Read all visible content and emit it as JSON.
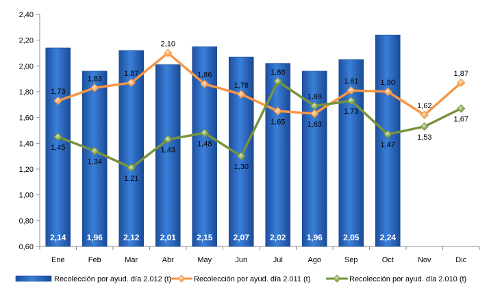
{
  "chart_data": {
    "type": "bar",
    "categories": [
      "Ene",
      "Feb",
      "Mar",
      "Abr",
      "May",
      "Jun",
      "Jul",
      "Ago",
      "Sep",
      "Oct",
      "Nov",
      "Dic"
    ],
    "ylim": [
      0.6,
      2.4
    ],
    "yticks": [
      "0,60",
      "0,80",
      "1,00",
      "1,20",
      "1,40",
      "1,60",
      "1,80",
      "2,00",
      "2,20",
      "2,40"
    ],
    "grid": false,
    "legend_position": "bottom",
    "series": [
      {
        "name": "Recolección por ayud. día 2.012 (t)",
        "kind": "bar",
        "color": "#2e6fce",
        "values": [
          2.14,
          1.96,
          2.12,
          2.01,
          2.15,
          2.07,
          2.02,
          1.96,
          2.05,
          2.24,
          null,
          null
        ],
        "labels": [
          "2,14",
          "1,96",
          "2,12",
          "2,01",
          "2,15",
          "2,07",
          "2,02",
          "1,96",
          "2,05",
          "2,24",
          "",
          ""
        ]
      },
      {
        "name": "Recolección por ayud. día 2.011 (t)",
        "kind": "line",
        "color": "#f79646",
        "values": [
          1.73,
          1.83,
          1.87,
          2.1,
          1.86,
          1.78,
          1.65,
          1.63,
          1.81,
          1.8,
          1.62,
          1.87
        ],
        "labels": [
          "1,73",
          "1,83",
          "1,87",
          "2,10",
          "1,86",
          "1,78",
          "1,65",
          "1,63",
          "1,81",
          "1,80",
          "1,62",
          "1,87"
        ]
      },
      {
        "name": "Recolección por ayud. día 2.010 (t)",
        "kind": "line",
        "color": "#77933c",
        "values": [
          1.45,
          1.34,
          1.21,
          1.43,
          1.48,
          1.3,
          1.88,
          1.69,
          1.73,
          1.47,
          1.53,
          1.67
        ],
        "labels": [
          "1,45",
          "1,34",
          "1,21",
          "1,43",
          "1,48",
          "1,30",
          "1,88",
          "1,69",
          "1,73",
          "1,47",
          "1,53",
          "1,67"
        ]
      }
    ]
  }
}
